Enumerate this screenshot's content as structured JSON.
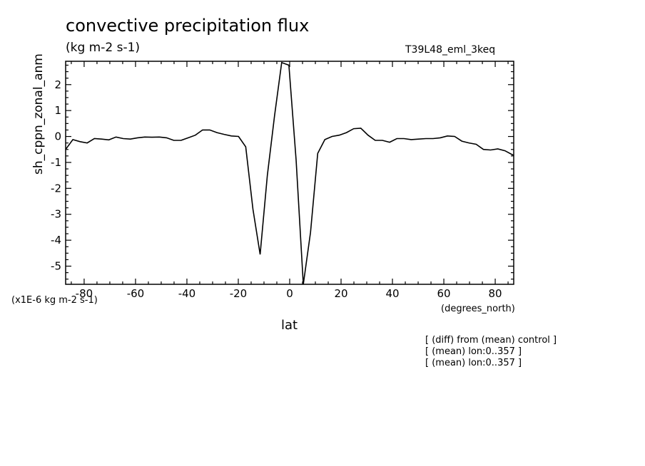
{
  "chart_data": {
    "type": "line",
    "title": "convective precipitation flux",
    "subtitle": "(kg m-2 s-1)",
    "run_label": "T39L48_eml_3keq",
    "xlabel": "lat",
    "ylabel": "sh_cppn_zonal_anm",
    "y_units": "(x1E-6 kg m-2 s-1)",
    "x_units": "(degrees_north)",
    "xlim": [
      -87.2,
      87.2
    ],
    "ylim": [
      -5.7,
      2.9
    ],
    "x_ticks": [
      -80,
      -60,
      -40,
      -20,
      0,
      20,
      40,
      60,
      80
    ],
    "x_tick_labels": [
      "-80",
      "-60",
      "-40",
      "-20",
      "0",
      "20",
      "40",
      "60",
      "80"
    ],
    "y_ticks": [
      -5,
      -4,
      -3,
      -2,
      -1,
      0,
      1,
      2
    ],
    "y_tick_labels": [
      "-5",
      "-4",
      "-3",
      "-2",
      "-1",
      "0",
      "1",
      "2"
    ],
    "grid": false,
    "series": [
      {
        "x": [
          -87.2,
          -84.4,
          -81.6,
          -78.8,
          -76.0,
          -73.2,
          -70.4,
          -67.6,
          -64.8,
          -62.0,
          -59.2,
          -56.4,
          -53.6,
          -50.7,
          -47.9,
          -45.1,
          -42.3,
          -39.5,
          -36.7,
          -33.9,
          -31.1,
          -28.3,
          -25.5,
          -22.7,
          -19.9,
          -17.1,
          -14.3,
          -11.5,
          -8.7,
          -5.9,
          -3.1,
          -0.3,
          2.5,
          5.3,
          8.1,
          10.9,
          13.7,
          16.5,
          19.3,
          22.1,
          24.9,
          27.7,
          30.5,
          33.3,
          36.1,
          38.9,
          41.7,
          44.5,
          47.3,
          50.2,
          53.0,
          55.8,
          58.6,
          61.4,
          64.2,
          67.0,
          69.8,
          72.6,
          75.4,
          78.2,
          81.0,
          83.8,
          86.6,
          87.2
        ],
        "y": [
          -0.5,
          -0.12,
          -0.2,
          -0.25,
          -0.08,
          -0.1,
          -0.13,
          -0.02,
          -0.08,
          -0.1,
          -0.05,
          -0.02,
          -0.03,
          -0.02,
          -0.05,
          -0.15,
          -0.15,
          -0.05,
          0.05,
          0.25,
          0.25,
          0.15,
          0.08,
          0.02,
          0.0,
          -0.4,
          -2.8,
          -4.55,
          -1.5,
          0.8,
          2.85,
          2.75,
          -0.9,
          -5.7,
          -3.7,
          -0.65,
          -0.12,
          0.0,
          0.05,
          0.15,
          0.3,
          0.32,
          0.05,
          -0.15,
          -0.15,
          -0.22,
          -0.08,
          -0.08,
          -0.12,
          -0.1,
          -0.08,
          -0.08,
          -0.05,
          0.02,
          0.0,
          -0.18,
          -0.25,
          -0.3,
          -0.5,
          -0.52,
          -0.48,
          -0.55,
          -0.7,
          -0.72
        ]
      }
    ],
    "notes": [
      "[ (diff) from (mean) control ]",
      "[ (mean) lon:0..357 ]",
      "[ (mean) lon:0..357 ]"
    ]
  }
}
